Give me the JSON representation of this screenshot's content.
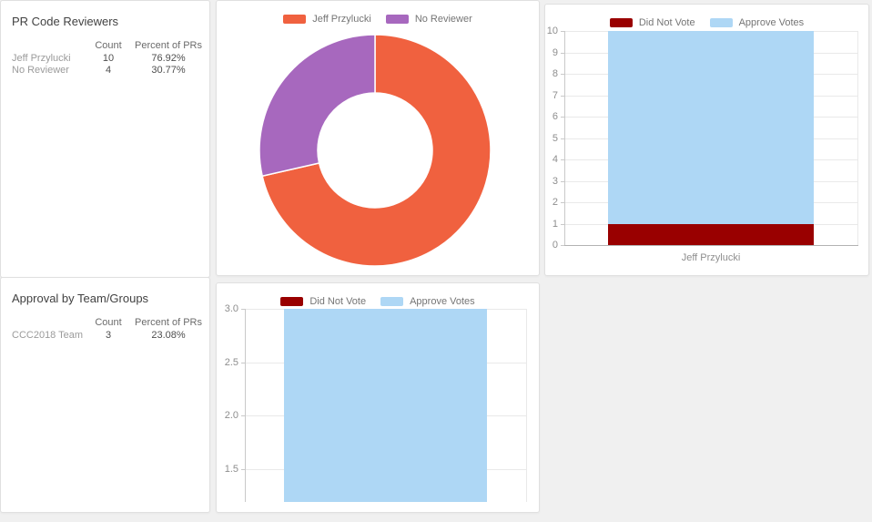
{
  "panels": {
    "pr_reviewers": {
      "title": "PR Code Reviewers",
      "columns": [
        "Count",
        "Percent of PRs"
      ],
      "rows": [
        {
          "label": "Jeff Przylucki",
          "count": "10",
          "percent": "76.92%"
        },
        {
          "label": "No Reviewer",
          "count": "4",
          "percent": "30.77%"
        }
      ]
    },
    "team_approval": {
      "title": "Approval by Team/Groups",
      "columns": [
        "Count",
        "Percent of PRs"
      ],
      "rows": [
        {
          "label": "CCC2018 Team",
          "count": "3",
          "percent": "23.08%"
        }
      ]
    }
  },
  "chart_data": [
    {
      "id": "reviewer-share-donut",
      "type": "pie",
      "style": "donut",
      "labels": [
        "Jeff Przylucki",
        "No Reviewer"
      ],
      "values": [
        10,
        4
      ],
      "colors": [
        "#f0613f",
        "#a768be"
      ],
      "start_angle": "top",
      "direction": "clockwise",
      "legend_position": "top"
    },
    {
      "id": "reviewer-votes-stacked-bar",
      "type": "bar",
      "stacked": true,
      "categories": [
        "Jeff Przylucki"
      ],
      "series": [
        {
          "name": "Did Not Vote",
          "color": "#990000",
          "values": [
            1
          ]
        },
        {
          "name": "Approve Votes",
          "color": "#aed7f5",
          "values": [
            9
          ]
        }
      ],
      "ylim": [
        0,
        10
      ],
      "yticks": [
        0,
        1,
        2,
        3,
        4,
        5,
        6,
        7,
        8,
        9,
        10
      ],
      "grid": true,
      "legend_position": "top"
    },
    {
      "id": "team-votes-stacked-bar",
      "type": "bar",
      "stacked": true,
      "categories": [
        ""
      ],
      "series": [
        {
          "name": "Did Not Vote",
          "color": "#990000",
          "values": [
            null
          ]
        },
        {
          "name": "Approve Votes",
          "color": "#aed7f5",
          "values": [
            3
          ]
        }
      ],
      "bar_top_value": 3.0,
      "ylim_visible": [
        1.19,
        3.0
      ],
      "yticks": [
        1.5,
        2.0,
        2.5,
        3.0
      ],
      "grid": true,
      "legend_position": "top",
      "layout_note": "lower axis area clipped at panel edge; no x labels visible"
    }
  ],
  "colors": {
    "page_background": "#f0f0f0",
    "panel_border": "#e0e0e0",
    "title_text": "#424242",
    "muted_text": "#9b9b9b",
    "value_text": "#4f4f4f",
    "legend_text": "#757575",
    "gridline": "#e9e9e9"
  }
}
